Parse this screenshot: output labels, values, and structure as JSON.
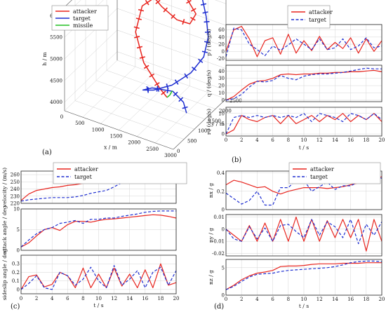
{
  "chart_data": [
    {
      "id": "a",
      "panel_label": "(a)",
      "type": "3d-trajectory",
      "legend": [
        {
          "name": "attacker",
          "color": "#e8251f"
        },
        {
          "name": "target",
          "color": "#1f2fd1"
        },
        {
          "name": "missile",
          "color": "#23c123"
        }
      ],
      "xlabel": "x / m",
      "ylabel": "y / m",
      "zlabel": "h / m",
      "xticks": [
        "0",
        "500",
        "1000",
        "1500",
        "2000",
        "2500",
        "3000"
      ],
      "yticks": [
        "0",
        "500",
        "1000",
        "1500",
        "2000",
        "2500"
      ],
      "zticks": [
        "4000",
        "4500",
        "5000",
        "5500",
        "6000"
      ],
      "xlim": [
        0,
        3000
      ],
      "ylim": [
        0,
        2500
      ],
      "zlim": [
        3800,
        6200
      ],
      "series": [
        {
          "name": "attacker",
          "color": "#e8251f",
          "points": [
            [
              0,
              2600,
              6050
            ],
            [
              400,
              2500,
              5950
            ],
            [
              900,
              2350,
              5800
            ],
            [
              1400,
              2200,
              5600
            ],
            [
              1850,
              2150,
              5450
            ],
            [
              2150,
              2250,
              5400
            ],
            [
              2200,
              2450,
              5550
            ],
            [
              1850,
              2600,
              5750
            ],
            [
              1300,
              2400,
              5800
            ],
            [
              950,
              2050,
              5550
            ],
            [
              1000,
              1650,
              5150
            ],
            [
              1400,
              1350,
              4700
            ],
            [
              1900,
              1250,
              4300
            ],
            [
              2100,
              1250,
              4150
            ]
          ]
        },
        {
          "name": "target",
          "color": "#1f2fd1",
          "points": [
            [
              700,
              2500,
              5850
            ],
            [
              1200,
              2650,
              5900
            ],
            [
              1800,
              2750,
              6050
            ],
            [
              2250,
              2600,
              6000
            ],
            [
              2600,
              2250,
              5700
            ],
            [
              2800,
              2000,
              5400
            ],
            [
              2850,
              1700,
              5100
            ],
            [
              2700,
              1350,
              4850
            ],
            [
              2350,
              1050,
              4600
            ],
            [
              1900,
              950,
              4400
            ],
            [
              1550,
              1050,
              4250
            ],
            [
              1600,
              1400,
              4150
            ],
            [
              2000,
              1700,
              4050
            ],
            [
              2350,
              1600,
              3950
            ],
            [
              2550,
              1400,
              3850
            ]
          ]
        },
        {
          "name": "missile",
          "color": "#23c123",
          "points": [
            [
              2100,
              1250,
              4150
            ],
            [
              2180,
              1250,
              4230
            ],
            [
              2230,
              1270,
              4330
            ]
          ]
        }
      ]
    },
    {
      "id": "b",
      "panel_label": "(b)",
      "type": "line",
      "legend": [
        {
          "name": "attacker",
          "style": "solid",
          "color": "#e8251f"
        },
        {
          "name": "target",
          "style": "dashed",
          "color": "#1f2fd1"
        }
      ],
      "xlabel": "t / s",
      "xlim": [
        0,
        20
      ],
      "xticks": [
        "0",
        "2",
        "4",
        "6",
        "8",
        "10",
        "12",
        "14",
        "16",
        "18",
        "20"
      ],
      "x": [
        0,
        1,
        2,
        3,
        4,
        5,
        6,
        7,
        8,
        9,
        10,
        11,
        12,
        13,
        14,
        15,
        16,
        17,
        18,
        19,
        20
      ],
      "subplots": [
        {
          "ylabel": "p / (deg/s)",
          "ylim": [
            -25,
            75
          ],
          "yticks": [
            "-20",
            "0",
            "20",
            "40",
            "60"
          ],
          "series": [
            {
              "name": "attacker",
              "values": [
                0,
                60,
                70,
                35,
                -15,
                30,
                38,
                -8,
                48,
                -5,
                30,
                2,
                42,
                5,
                25,
                8,
                38,
                -5,
                35,
                0,
                30
              ]
            },
            {
              "name": "target",
              "values": [
                -15,
                65,
                60,
                20,
                5,
                -12,
                15,
                3,
                18,
                35,
                20,
                5,
                35,
                5,
                10,
                35,
                5,
                15,
                38,
                10,
                15
              ]
            }
          ]
        },
        {
          "ylabel": "q / (deg/s)",
          "ylim": [
            -2,
            48
          ],
          "yticks": [
            "0",
            "10",
            "20",
            "30",
            "40"
          ],
          "series": [
            {
              "name": "attacker",
              "values": [
                0,
                5,
                14,
                22,
                26,
                27,
                30,
                35,
                36,
                35,
                36,
                36,
                37,
                37,
                38,
                38,
                39,
                39,
                40,
                41,
                39
              ]
            },
            {
              "name": "target",
              "values": [
                0,
                2,
                8,
                18,
                26,
                25,
                27,
                34,
                30,
                28,
                33,
                35,
                36,
                36,
                37,
                38,
                40,
                42,
                44,
                43,
                43
              ]
            }
          ]
        },
        {
          "ylabel": "r / (deg/s)",
          "ylim": [
            -1,
            13
          ],
          "yticks": [
            "0",
            "5",
            "10"
          ],
          "series": [
            {
              "name": "attacker",
              "values": [
                0,
                2,
                9,
                7,
                6,
                8,
                9,
                5,
                9,
                5,
                7,
                9,
                6,
                9,
                7,
                10,
                6,
                9,
                7,
                10,
                6
              ]
            },
            {
              "name": "target",
              "values": [
                0,
                8,
                9,
                8,
                9,
                8,
                9,
                8,
                9,
                8,
                10,
                6,
                10,
                9,
                8,
                6,
                10,
                9,
                7,
                10,
                7
              ]
            }
          ]
        }
      ]
    },
    {
      "id": "c",
      "panel_label": "(c)",
      "type": "line",
      "legend": [
        {
          "name": "attacker",
          "style": "solid",
          "color": "#e8251f"
        },
        {
          "name": "target",
          "style": "dashed",
          "color": "#1f2fd1"
        }
      ],
      "xlabel": "t / s",
      "xlim": [
        0,
        20
      ],
      "xticks": [
        "0",
        "2",
        "4",
        "6",
        "8",
        "10",
        "12",
        "14",
        "16",
        "18",
        "20"
      ],
      "x": [
        0,
        1,
        2,
        3,
        4,
        5,
        6,
        7,
        8,
        9,
        10,
        11,
        12,
        13,
        14,
        15,
        16,
        17,
        18,
        19,
        20
      ],
      "subplots": [
        {
          "ylabel": "velocity / (m/s)",
          "ylim": [
            220,
            265
          ],
          "yticks": [
            "220",
            "230",
            "240",
            "250",
            "260"
          ],
          "series": [
            {
              "name": "attacker",
              "values": [
                224,
                233,
                238,
                240,
                242,
                243,
                245,
                246,
                248,
                250,
                251,
                252,
                251,
                250,
                249,
                248,
                248,
                250,
                252,
                256,
                258
              ]
            },
            {
              "name": "target",
              "values": [
                223,
                225,
                226,
                227,
                228,
                228,
                228,
                229,
                231,
                234,
                236,
                238,
                243,
                249,
                254,
                258,
                261,
                262,
                262,
                262,
                259
              ]
            }
          ]
        },
        {
          "ylabel": "attack angle / deg",
          "ylim": [
            0,
            10
          ],
          "yticks": [
            "0",
            "5",
            "10"
          ],
          "series": [
            {
              "name": "attacker",
              "values": [
                0.8,
                1.8,
                3.5,
                5,
                5.5,
                4.8,
                6.2,
                7,
                7,
                6.8,
                7.2,
                7.5,
                7.6,
                7.8,
                8,
                8.2,
                8.4,
                8.6,
                8.5,
                8.2,
                7.8
              ]
            },
            {
              "name": "target",
              "values": [
                0.8,
                2.5,
                4,
                5,
                5.5,
                6.5,
                6.8,
                7.2,
                6.5,
                7.5,
                7.5,
                7.8,
                7.8,
                8.2,
                8.5,
                8.8,
                9.2,
                9.4,
                9.5,
                9.5,
                9.5
              ]
            }
          ]
        },
        {
          "ylabel": "sideslip angle / deg",
          "ylim": [
            -0.05,
            0.4
          ],
          "yticks": [
            "0",
            "0.1",
            "0.2",
            "0.3"
          ],
          "series": [
            {
              "name": "attacker",
              "values": [
                0,
                0.15,
                0.17,
                0.03,
                0.06,
                0.2,
                0.16,
                0.02,
                0.25,
                0.02,
                0.18,
                0.02,
                0.25,
                0.04,
                0.18,
                0.02,
                0.23,
                0.02,
                0.3,
                0.05,
                0.08
              ]
            },
            {
              "name": "target",
              "values": [
                0,
                0.07,
                0.16,
                0.02,
                0,
                0.2,
                0.16,
                0.05,
                0.12,
                0.26,
                0.1,
                0.02,
                0.28,
                0.05,
                0.12,
                0.22,
                0.02,
                0.2,
                0.26,
                0.05,
                0.22
              ]
            }
          ]
        }
      ]
    },
    {
      "id": "d",
      "panel_label": "(d)",
      "type": "line",
      "legend": [
        {
          "name": "attacker",
          "style": "solid",
          "color": "#e8251f"
        },
        {
          "name": "target",
          "style": "dashed",
          "color": "#1f2fd1"
        }
      ],
      "xlabel": "t / s",
      "xlim": [
        0,
        20
      ],
      "xticks": [
        "0",
        "2",
        "4",
        "6",
        "8",
        "10",
        "12",
        "14",
        "16",
        "18",
        "20"
      ],
      "x": [
        0,
        1,
        2,
        3,
        4,
        5,
        6,
        7,
        8,
        9,
        10,
        11,
        12,
        13,
        14,
        15,
        16,
        17,
        18,
        19,
        20
      ],
      "subplots": [
        {
          "ylabel": "nx / g",
          "ylim": [
            0,
            0.42
          ],
          "yticks": [
            "0",
            "0.2",
            "0.4"
          ],
          "series": [
            {
              "name": "attacker",
              "values": [
                0.27,
                0.32,
                0.3,
                0.27,
                0.24,
                0.25,
                0.2,
                0.17,
                0.2,
                0.22,
                0.24,
                0.24,
                0.24,
                0.23,
                0.24,
                0.25,
                0.27,
                0.29,
                0.31,
                0.33,
                0.36
              ]
            },
            {
              "name": "target",
              "values": [
                0.18,
                0.12,
                0.06,
                0.1,
                0.2,
                0.05,
                0.05,
                0.24,
                0.24,
                0.32,
                0.32,
                0.2,
                0.25,
                0.3,
                0.22,
                0.26,
                0.26,
                0.3,
                0.35,
                0.38,
                0.34
              ]
            }
          ]
        },
        {
          "ylabel": "ny / g",
          "ylim": [
            -0.022,
            0.012
          ],
          "yticks": [
            "-0.02",
            "-0.01",
            "0",
            "0.01"
          ],
          "series": [
            {
              "name": "attacker",
              "values": [
                0,
                -0.005,
                -0.01,
                0.003,
                -0.01,
                0.005,
                -0.01,
                0.008,
                -0.01,
                0.01,
                -0.01,
                0.008,
                -0.01,
                0.007,
                -0.007,
                0.008,
                -0.007,
                0.008,
                -0.018,
                0.008,
                -0.01
              ]
            },
            {
              "name": "target",
              "values": [
                0,
                -0.008,
                -0.01,
                0.002,
                -0.008,
                0.001,
                -0.01,
                0.003,
                0.004,
                -0.002,
                -0.007,
                0.008,
                -0.005,
                0.006,
                0.002,
                -0.007,
                0.008,
                -0.012,
                0.004,
                -0.005,
                0.006
              ]
            }
          ]
        },
        {
          "ylabel": "nz / g",
          "ylim": [
            0,
            6.5
          ],
          "yticks": [
            "0",
            "5"
          ],
          "series": [
            {
              "name": "attacker",
              "values": [
                1,
                1.8,
                2.8,
                3.5,
                4,
                4.2,
                4.5,
                5.2,
                5.3,
                5.3,
                5.4,
                5.6,
                5.7,
                5.7,
                5.7,
                5.8,
                5.8,
                5.8,
                5.9,
                5.9,
                5.9
              ]
            },
            {
              "name": "target",
              "values": [
                1,
                1.6,
                2.5,
                3.3,
                3.8,
                3.9,
                4,
                4.3,
                4.5,
                4.6,
                4.7,
                4.8,
                4.9,
                5,
                5.2,
                5.5,
                5.9,
                6.1,
                6.2,
                6.2,
                6.1
              ]
            }
          ]
        }
      ]
    }
  ]
}
